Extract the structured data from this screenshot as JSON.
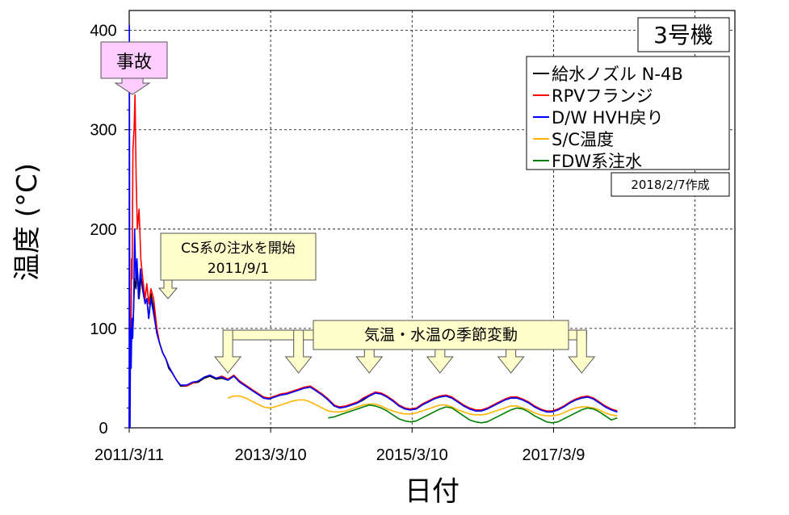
{
  "chart_data": {
    "type": "line",
    "title": "3号機",
    "xlabel": "日付",
    "ylabel": "温度 (°C)",
    "ylim": [
      0,
      420
    ],
    "xlim": [
      "2011-03-11",
      "2019-10-01"
    ],
    "y_ticks": [
      0,
      100,
      200,
      300,
      400
    ],
    "x_ticks": [
      {
        "date": "2011-03-11",
        "label": "2011/3/11"
      },
      {
        "date": "2013-03-10",
        "label": "2013/3/10"
      },
      {
        "date": "2015-03-10",
        "label": "2015/3/10"
      },
      {
        "date": "2017-03-09",
        "label": "2017/3/9"
      }
    ],
    "grid": true,
    "legend_position": "top-right",
    "created_label": "2018/2/7作成",
    "annotations": [
      {
        "text": "事故",
        "date": "2011-03-11"
      },
      {
        "lines": [
          "CS系の注水を開始",
          "2011/9/1"
        ],
        "date": "2011-09-01"
      },
      {
        "text": "気温・水温の季節変動",
        "dates": [
          "2012-08-01",
          "2013-08-01",
          "2014-08-01",
          "2015-08-01",
          "2016-08-01",
          "2017-08-01"
        ]
      }
    ],
    "series": [
      {
        "name": "給水ノズル N-4B",
        "color": "#000000",
        "x": [
          "2011-03-11",
          "2011-03-13",
          "2011-03-16",
          "2011-03-20",
          "2011-03-25",
          "2011-04-01",
          "2011-04-08",
          "2011-04-15",
          "2011-04-22",
          "2011-05-01",
          "2011-05-10",
          "2011-05-20",
          "2011-06-01",
          "2011-06-10",
          "2011-06-20",
          "2011-07-01",
          "2011-07-15",
          "2011-08-01",
          "2011-08-15",
          "2011-09-01",
          "2011-09-15",
          "2011-10-01",
          "2011-10-20",
          "2011-11-10",
          "2011-12-01",
          "2012-01-01",
          "2012-02-01",
          "2012-03-01",
          "2012-04-01",
          "2012-05-01",
          "2012-06-01",
          "2012-07-01",
          "2012-08-01",
          "2012-09-01",
          "2012-10-01",
          "2012-11-01",
          "2012-12-01",
          "2013-01-01",
          "2013-02-01",
          "2013-03-01",
          "2013-04-01",
          "2013-05-01",
          "2013-06-01",
          "2013-07-01",
          "2013-08-01",
          "2013-09-01",
          "2013-10-01",
          "2013-11-01",
          "2013-12-01",
          "2014-01-01",
          "2014-02-01",
          "2014-03-01",
          "2014-04-01",
          "2014-05-01",
          "2014-06-01",
          "2014-07-01",
          "2014-08-01",
          "2014-09-01",
          "2014-10-01",
          "2014-11-01",
          "2014-12-01",
          "2015-01-01",
          "2015-02-01",
          "2015-03-01",
          "2015-04-01",
          "2015-05-01",
          "2015-06-01",
          "2015-07-01",
          "2015-08-01",
          "2015-09-01",
          "2015-10-01",
          "2015-11-01",
          "2015-12-01",
          "2016-01-01",
          "2016-02-01",
          "2016-03-01",
          "2016-04-01",
          "2016-05-01",
          "2016-06-01",
          "2016-07-01",
          "2016-08-01",
          "2016-09-01",
          "2016-10-01",
          "2016-11-01",
          "2016-12-01",
          "2017-01-01",
          "2017-02-01",
          "2017-03-01",
          "2017-04-01",
          "2017-05-01",
          "2017-06-01",
          "2017-07-01",
          "2017-08-01",
          "2017-09-01",
          "2017-10-01",
          "2017-11-01",
          "2017-12-01",
          "2018-01-01",
          "2018-02-01"
        ],
        "y": [
          0,
          100,
          60,
          105,
          90,
          110,
          150,
          140,
          160,
          130,
          150,
          145,
          125,
          130,
          110,
          135,
          120,
          95,
          85,
          75,
          70,
          60,
          55,
          48,
          42,
          42,
          45,
          46,
          50,
          52,
          49,
          50,
          48,
          52,
          46,
          42,
          38,
          34,
          30,
          29,
          31,
          33,
          34,
          36,
          38,
          40,
          41,
          37,
          33,
          28,
          22,
          20,
          21,
          23,
          25,
          28,
          32,
          35,
          34,
          31,
          27,
          22,
          19,
          18,
          19,
          23,
          26,
          29,
          31,
          32,
          30,
          26,
          22,
          19,
          17,
          17,
          19,
          22,
          25,
          28,
          30,
          30,
          28,
          25,
          21,
          18,
          16,
          16,
          18,
          21,
          25,
          28,
          30,
          31,
          29,
          25,
          21,
          18,
          16
        ]
      },
      {
        "name": "RPVフランジ",
        "color": "#ff0000",
        "x": [
          "2011-03-11",
          "2011-03-14",
          "2011-03-17",
          "2011-03-20",
          "2011-03-23",
          "2011-03-26",
          "2011-03-30",
          "2011-04-05",
          "2011-04-10",
          "2011-04-16",
          "2011-04-22",
          "2011-05-01",
          "2011-05-10",
          "2011-05-20",
          "2011-06-01",
          "2011-06-10",
          "2011-06-20",
          "2011-07-01",
          "2011-07-15",
          "2011-08-01",
          "2011-08-15",
          "2011-09-01",
          "2011-09-15",
          "2011-10-01",
          "2011-10-20",
          "2011-11-10",
          "2011-12-01",
          "2012-01-01",
          "2012-02-01",
          "2012-03-01",
          "2012-04-01",
          "2012-05-01",
          "2012-06-01",
          "2012-07-01",
          "2012-08-01",
          "2012-09-01",
          "2012-10-01",
          "2012-11-01",
          "2012-12-01",
          "2013-01-01",
          "2013-02-01",
          "2013-03-01",
          "2013-04-01",
          "2013-05-01",
          "2013-06-01",
          "2013-07-01",
          "2013-08-01",
          "2013-09-01",
          "2013-10-01",
          "2013-11-01",
          "2013-12-01",
          "2014-01-01",
          "2014-02-01",
          "2014-03-01",
          "2014-04-01",
          "2014-05-01",
          "2014-06-01",
          "2014-07-01",
          "2014-08-01",
          "2014-09-01",
          "2014-10-01",
          "2014-11-01",
          "2014-12-01",
          "2015-01-01",
          "2015-02-01",
          "2015-03-01",
          "2015-04-01",
          "2015-05-01",
          "2015-06-01",
          "2015-07-01",
          "2015-08-01",
          "2015-09-01",
          "2015-10-01",
          "2015-11-01",
          "2015-12-01",
          "2016-01-01",
          "2016-02-01",
          "2016-03-01",
          "2016-04-01",
          "2016-05-01",
          "2016-06-01",
          "2016-07-01",
          "2016-08-01",
          "2016-09-01",
          "2016-10-01",
          "2016-11-01",
          "2016-12-01",
          "2017-01-01",
          "2017-02-01",
          "2017-03-01",
          "2017-04-01",
          "2017-05-01",
          "2017-06-01",
          "2017-07-01",
          "2017-08-01",
          "2017-09-01",
          "2017-10-01",
          "2017-11-01",
          "2017-12-01",
          "2018-01-01",
          "2018-02-01"
        ],
        "y": [
          0,
          70,
          90,
          80,
          170,
          150,
          280,
          300,
          335,
          250,
          200,
          220,
          170,
          150,
          130,
          145,
          125,
          140,
          130,
          100,
          85,
          75,
          70,
          62,
          55,
          48,
          43,
          42,
          45,
          47,
          51,
          53,
          50,
          52,
          49,
          53,
          47,
          43,
          39,
          35,
          31,
          30,
          32,
          34,
          35,
          37,
          39,
          41,
          42,
          38,
          34,
          29,
          23,
          21,
          22,
          24,
          26,
          30,
          33,
          36,
          35,
          32,
          28,
          23,
          20,
          19,
          20,
          24,
          27,
          30,
          32,
          33,
          31,
          27,
          23,
          20,
          18,
          18,
          20,
          23,
          26,
          29,
          31,
          31,
          29,
          26,
          22,
          19,
          17,
          17,
          19,
          22,
          26,
          29,
          31,
          32,
          30,
          26,
          22,
          19,
          17
        ]
      },
      {
        "name": "D/W HVH戻り",
        "color": "#0000ff",
        "x": [
          "2011-03-11",
          "2011-03-12",
          "2011-03-13",
          "2011-03-15",
          "2011-03-18",
          "2011-03-21",
          "2011-03-25",
          "2011-03-29",
          "2011-04-03",
          "2011-04-08",
          "2011-04-14",
          "2011-04-20",
          "2011-04-28",
          "2011-05-08",
          "2011-05-18",
          "2011-06-01",
          "2011-06-10",
          "2011-06-20",
          "2011-07-01",
          "2011-07-15",
          "2011-08-01",
          "2011-08-15",
          "2011-09-01",
          "2011-09-15",
          "2011-10-01",
          "2011-10-20",
          "2011-11-10",
          "2011-12-01",
          "2012-01-01",
          "2012-02-01",
          "2012-03-01",
          "2012-04-01",
          "2012-05-01",
          "2012-06-01",
          "2012-07-01",
          "2012-08-01",
          "2012-09-01",
          "2012-10-01",
          "2012-11-01",
          "2012-12-01",
          "2013-01-01",
          "2013-02-01",
          "2013-03-01",
          "2013-04-01",
          "2013-05-01",
          "2013-06-01",
          "2013-07-01",
          "2013-08-01",
          "2013-09-01",
          "2013-10-01",
          "2013-11-01",
          "2013-12-01",
          "2014-01-01",
          "2014-02-01",
          "2014-03-01",
          "2014-04-01",
          "2014-05-01",
          "2014-06-01",
          "2014-07-01",
          "2014-08-01",
          "2014-09-01",
          "2014-10-01",
          "2014-11-01",
          "2014-12-01",
          "2015-01-01",
          "2015-02-01",
          "2015-03-01",
          "2015-04-01",
          "2015-05-01",
          "2015-06-01",
          "2015-07-01",
          "2015-08-01",
          "2015-09-01",
          "2015-10-01",
          "2015-11-01",
          "2015-12-01",
          "2016-01-01",
          "2016-02-01",
          "2016-03-01",
          "2016-04-01",
          "2016-05-01",
          "2016-06-01",
          "2016-07-01",
          "2016-08-01",
          "2016-09-01",
          "2016-10-01",
          "2016-11-01",
          "2016-12-01",
          "2017-01-01",
          "2017-02-01",
          "2017-03-01",
          "2017-04-01",
          "2017-05-01",
          "2017-06-01",
          "2017-07-01",
          "2017-08-01",
          "2017-09-01",
          "2017-10-01",
          "2017-11-01",
          "2017-12-01",
          "2018-01-01",
          "2018-02-01"
        ],
        "y": [
          0,
          405,
          200,
          0,
          100,
          60,
          110,
          90,
          120,
          200,
          150,
          170,
          130,
          160,
          140,
          125,
          130,
          110,
          130,
          115,
          95,
          85,
          75,
          70,
          62,
          55,
          48,
          43,
          43,
          46,
          47,
          51,
          53,
          50,
          51,
          48,
          52,
          46,
          42,
          38,
          34,
          30,
          29,
          31,
          33,
          34,
          36,
          38,
          40,
          41,
          37,
          33,
          28,
          22,
          20,
          21,
          23,
          25,
          29,
          32,
          35,
          34,
          31,
          27,
          22,
          19,
          18,
          19,
          23,
          26,
          29,
          31,
          32,
          30,
          26,
          22,
          19,
          17,
          17,
          19,
          22,
          25,
          28,
          30,
          30,
          28,
          25,
          21,
          18,
          16,
          16,
          18,
          21,
          25,
          28,
          30,
          31,
          29,
          25,
          21,
          18,
          16
        ]
      },
      {
        "name": "S/C温度",
        "color": "#ffb400",
        "x": [
          "2012-08-01",
          "2012-09-01",
          "2012-10-01",
          "2012-11-01",
          "2012-12-01",
          "2013-01-01",
          "2013-02-01",
          "2013-03-01",
          "2013-04-01",
          "2013-05-01",
          "2013-06-01",
          "2013-07-01",
          "2013-08-01",
          "2013-09-01",
          "2013-10-01",
          "2013-11-01",
          "2013-12-01",
          "2014-01-01",
          "2014-02-01",
          "2014-03-01",
          "2014-04-01",
          "2014-05-01",
          "2014-06-01",
          "2014-07-01",
          "2014-08-01",
          "2014-09-01",
          "2014-10-01",
          "2014-11-01",
          "2014-12-01",
          "2015-01-01",
          "2015-02-01",
          "2015-03-01",
          "2015-04-01",
          "2015-05-01",
          "2015-06-01",
          "2015-07-01",
          "2015-08-01",
          "2015-09-01",
          "2015-10-01",
          "2015-11-01",
          "2015-12-01",
          "2016-01-01",
          "2016-02-01",
          "2016-03-01",
          "2016-04-01",
          "2016-05-01",
          "2016-06-01",
          "2016-07-01",
          "2016-08-01",
          "2016-09-01",
          "2016-10-01",
          "2016-11-01",
          "2016-12-01",
          "2017-01-01",
          "2017-02-01",
          "2017-03-01",
          "2017-04-01",
          "2017-05-01",
          "2017-06-01",
          "2017-07-01",
          "2017-08-01",
          "2017-09-01",
          "2017-10-01",
          "2017-11-01",
          "2017-12-01",
          "2018-01-01",
          "2018-02-01"
        ],
        "y": [
          30,
          32,
          32,
          30,
          27,
          24,
          21,
          20,
          21,
          23,
          25,
          27,
          28,
          28,
          26,
          23,
          20,
          17,
          16,
          16,
          17,
          19,
          21,
          23,
          24,
          24,
          22,
          19,
          17,
          15,
          14,
          14,
          15,
          17,
          19,
          21,
          23,
          23,
          21,
          18,
          16,
          14,
          13,
          13,
          14,
          16,
          18,
          20,
          22,
          22,
          20,
          18,
          15,
          13,
          12,
          12,
          13,
          15,
          18,
          20,
          21,
          21,
          20,
          18,
          15,
          13,
          12
        ]
      },
      {
        "name": "FDW系注水",
        "color": "#008000",
        "x": [
          "2014-01-01",
          "2014-02-01",
          "2014-03-01",
          "2014-04-01",
          "2014-05-01",
          "2014-06-01",
          "2014-07-01",
          "2014-08-01",
          "2014-09-01",
          "2014-10-01",
          "2014-11-01",
          "2014-12-01",
          "2015-01-01",
          "2015-02-01",
          "2015-03-01",
          "2015-04-01",
          "2015-05-01",
          "2015-06-01",
          "2015-07-01",
          "2015-08-01",
          "2015-09-01",
          "2015-10-01",
          "2015-11-01",
          "2015-12-01",
          "2016-01-01",
          "2016-02-01",
          "2016-03-01",
          "2016-04-01",
          "2016-05-01",
          "2016-06-01",
          "2016-07-01",
          "2016-08-01",
          "2016-09-01",
          "2016-10-01",
          "2016-11-01",
          "2016-12-01",
          "2017-01-01",
          "2017-02-01",
          "2017-03-01",
          "2017-04-01",
          "2017-05-01",
          "2017-06-01",
          "2017-07-01",
          "2017-08-01",
          "2017-09-01",
          "2017-10-01",
          "2017-11-01",
          "2017-12-01",
          "2018-01-01",
          "2018-02-01"
        ],
        "y": [
          10,
          11,
          13,
          15,
          17,
          19,
          21,
          23,
          22,
          20,
          17,
          13,
          9,
          7,
          6,
          7,
          10,
          13,
          16,
          19,
          21,
          20,
          16,
          12,
          8,
          6,
          5,
          6,
          9,
          12,
          15,
          18,
          20,
          19,
          16,
          12,
          9,
          6,
          5,
          6,
          9,
          12,
          15,
          18,
          20,
          19,
          16,
          12,
          8,
          10
        ]
      }
    ]
  }
}
